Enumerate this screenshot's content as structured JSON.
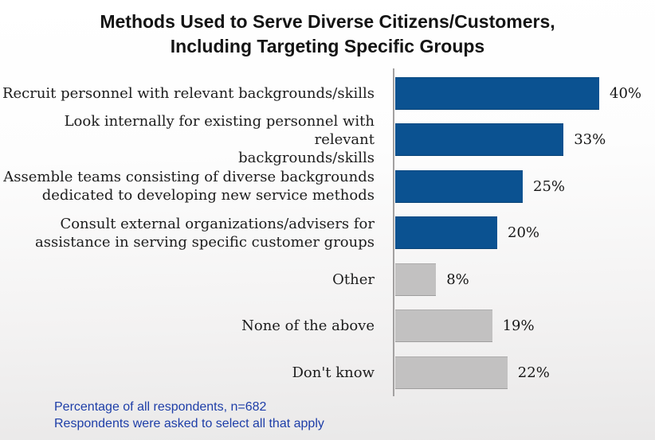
{
  "chart_data": {
    "type": "bar",
    "orientation": "horizontal",
    "title": "Methods Used to Serve Diverse Citizens/Customers, Including Targeting Specific Groups",
    "title_lines": [
      "Methods Used to Serve Diverse Citizens/Customers,",
      "Including Targeting Specific Groups"
    ],
    "categories": [
      "Recruit personnel with relevant backgrounds/skills",
      "Look internally for existing personnel with relevant\nbackgrounds/skills",
      "Assemble teams consisting of diverse backgrounds\ndedicated to developing new service methods",
      "Consult external organizations/advisers for\nassistance in serving specific customer groups",
      "Other",
      "None of the above",
      "Don't know"
    ],
    "values": [
      40,
      33,
      25,
      20,
      8,
      19,
      22
    ],
    "value_labels": [
      "40%",
      "33%",
      "25%",
      "20%",
      "8%",
      "19%",
      "22%"
    ],
    "bar_colors": [
      "#0b5291",
      "#0b5291",
      "#0b5291",
      "#0b5291",
      "#c2c1c1",
      "#c2c1c1",
      "#c2c1c1"
    ],
    "unit": "percent",
    "xlim": [
      0,
      51
    ],
    "grid": "off",
    "legend": "none",
    "axis_line_color": "#a3a1a1",
    "annotations": [
      "Percentage of all respondents, n=682",
      "Respondents were asked to select all that apply"
    ],
    "colors": {
      "highlight_blue": "#0b5291",
      "neutral_gray": "#c2c1c1",
      "footnote_blue": "#1e3ea8",
      "title_black": "#141414"
    }
  }
}
